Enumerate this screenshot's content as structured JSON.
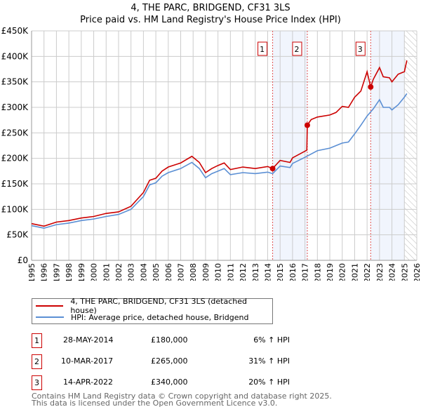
{
  "chart_data": {
    "type": "line",
    "title": "4, THE PARC, BRIDGEND, CF31 3LS",
    "subtitle": "Price paid vs. HM Land Registry's House Price Index (HPI)",
    "xlim": [
      1995,
      2026
    ],
    "ylim": [
      0,
      450000
    ],
    "x_ticks": [
      "1995",
      "1996",
      "1997",
      "1998",
      "1999",
      "2000",
      "2001",
      "2002",
      "2003",
      "2004",
      "2005",
      "2006",
      "2007",
      "2008",
      "2009",
      "2010",
      "2011",
      "2012",
      "2013",
      "2014",
      "2015",
      "2016",
      "2017",
      "2018",
      "2019",
      "2020",
      "2021",
      "2022",
      "2023",
      "2024",
      "2025",
      "2026"
    ],
    "y_ticks": [
      {
        "v": 0,
        "label": "£0"
      },
      {
        "v": 50000,
        "label": "£50K"
      },
      {
        "v": 100000,
        "label": "£100K"
      },
      {
        "v": 150000,
        "label": "£150K"
      },
      {
        "v": 200000,
        "label": "£200K"
      },
      {
        "v": 250000,
        "label": "£250K"
      },
      {
        "v": 300000,
        "label": "£300K"
      },
      {
        "v": 350000,
        "label": "£350K"
      },
      {
        "v": 400000,
        "label": "£400K"
      },
      {
        "v": 450000,
        "label": "£450K"
      }
    ],
    "grid": true,
    "shaded_ranges": [
      [
        2014.4,
        2017.19
      ],
      [
        2022.29,
        2025.0
      ]
    ],
    "forecast_hatch_from": 2025.0,
    "series": [
      {
        "name": "4, THE PARC, BRIDGEND, CF31 3LS (detached house)",
        "color": "#cc0000",
        "x": [
          1995,
          1996,
          1997,
          1998,
          1999,
          2000,
          2001,
          2002,
          2003,
          2004,
          2004.5,
          2005,
          2005.5,
          2006,
          2007,
          2007.9,
          2008.5,
          2009,
          2009.5,
          2010,
          2010.5,
          2011,
          2012,
          2013,
          2014,
          2014.4,
          2015,
          2015.8,
          2016,
          2017.15,
          2017.19,
          2017.5,
          2018,
          2019,
          2019.5,
          2020,
          2020.5,
          2021,
          2021.5,
          2022,
          2022.29,
          2022.5,
          2023,
          2023.3,
          2023.8,
          2024,
          2024.5,
          2025,
          2025.2
        ],
        "y": [
          72,
          67,
          75,
          78,
          83,
          86,
          92,
          95,
          106,
          133,
          157,
          161,
          175,
          183,
          191,
          204,
          192,
          172,
          180,
          186,
          191,
          178,
          183,
          180,
          184,
          180,
          196,
          192,
          201,
          216,
          265,
          276,
          281,
          285,
          290,
          302,
          300,
          320,
          332,
          370,
          340,
          355,
          378,
          360,
          358,
          350,
          365,
          370,
          392
        ]
      },
      {
        "name": "HPI: Average price, detached house, Bridgend",
        "color": "#5b8fd4",
        "x": [
          1995,
          1996,
          1997,
          1998,
          1999,
          2000,
          2001,
          2002,
          2003,
          2004,
          2004.5,
          2005,
          2005.5,
          2006,
          2007,
          2007.9,
          2008.5,
          2009,
          2009.5,
          2010,
          2010.5,
          2011,
          2012,
          2013,
          2014,
          2014.4,
          2015,
          2015.8,
          2016,
          2017,
          2018,
          2019,
          2019.5,
          2020,
          2020.5,
          2021,
          2021.5,
          2022,
          2022.5,
          2023,
          2023.3,
          2023.8,
          2024,
          2024.5,
          2025,
          2025.2
        ],
        "y": [
          68,
          63,
          70,
          73,
          78,
          81,
          86,
          90,
          100,
          125,
          148,
          152,
          165,
          172,
          180,
          192,
          180,
          162,
          170,
          175,
          180,
          168,
          172,
          170,
          173,
          170,
          185,
          182,
          190,
          202,
          215,
          220,
          225,
          230,
          232,
          248,
          265,
          283,
          297,
          315,
          300,
          300,
          295,
          305,
          320,
          327
        ]
      }
    ],
    "y_units": "thousands GBP",
    "sales": [
      {
        "id": "1",
        "x": 2014.4,
        "y": 180,
        "date": "28-MAY-2014",
        "price": "£180,000",
        "hpi": "6% ↑ HPI"
      },
      {
        "id": "2",
        "x": 2017.19,
        "y": 265,
        "date": "10-MAR-2017",
        "price": "£265,000",
        "hpi": "31% ↑ HPI"
      },
      {
        "id": "3",
        "x": 2022.29,
        "y": 340,
        "date": "14-APR-2022",
        "price": "£340,000",
        "hpi": "20% ↑ HPI"
      }
    ]
  },
  "footer": {
    "line1": "Contains HM Land Registry data © Crown copyright and database right 2025.",
    "line2": "This data is licensed under the Open Government Licence v3.0."
  }
}
